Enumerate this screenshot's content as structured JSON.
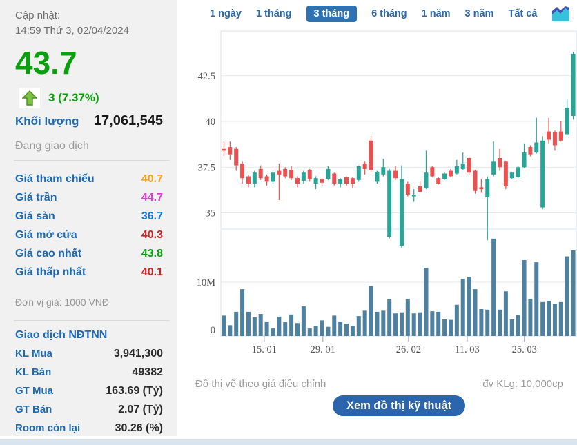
{
  "update": {
    "label": "Cập nhật:",
    "datetime": "14:59 Thứ 3, 02/04/2024"
  },
  "ticker": {
    "last_price": "43.7",
    "change_text": "3 (7.37%)",
    "volume_label": "Khối lượng",
    "volume_value": "17,061,545",
    "status": "Đang giao dịch"
  },
  "price_table": {
    "rows": [
      {
        "label": "Giá tham chiếu",
        "value": "40.7",
        "color": "#f7a21b"
      },
      {
        "label": "Giá trần",
        "value": "44.7",
        "color": "#dd3bd4"
      },
      {
        "label": "Giá sàn",
        "value": "36.7",
        "color": "#1577d4"
      },
      {
        "label": "Giá mở cửa",
        "value": "40.3",
        "color": "#d0211f"
      },
      {
        "label": "Giá cao nhất",
        "value": "43.8",
        "color": "#0aa00d"
      },
      {
        "label": "Giá thấp nhất",
        "value": "40.1",
        "color": "#d0211f"
      }
    ],
    "unit_note": "Đơn vị giá: 1000 VNĐ"
  },
  "foreign_block": {
    "title": "Giao dịch NĐTNN",
    "rows": [
      {
        "label": "KL Mua",
        "value": "3,941,300"
      },
      {
        "label": "KL Bán",
        "value": "49382"
      },
      {
        "label": "GT Mua",
        "value": "163.69 (Tỷ)"
      },
      {
        "label": "GT Bán",
        "value": "2.07 (Tỷ)"
      },
      {
        "label": "Room còn lại",
        "value": "30.26 (%)"
      }
    ]
  },
  "tabs": {
    "items": [
      {
        "label": "1 ngày",
        "active": false
      },
      {
        "label": "1 tháng",
        "active": false
      },
      {
        "label": "3 tháng",
        "active": true
      },
      {
        "label": "6 tháng",
        "active": false
      },
      {
        "label": "1 năm",
        "active": false
      },
      {
        "label": "3 năm",
        "active": false
      },
      {
        "label": "Tất cả",
        "active": false
      }
    ],
    "chart_icon": "area-chart-icon"
  },
  "footer": {
    "note_left": "Đồ thị vẽ theo giá điều chỉnh",
    "note_right": "đv KLg: 10,000cp",
    "button_label": "Xem đồ thị kỹ thuật"
  },
  "colors": {
    "up_candle": "#27a598",
    "down_candle": "#ea5252",
    "volume_bar": "#4e80a0",
    "grid_line": "#e8e8e8",
    "panel_border": "#d9e3ef",
    "axis_text": "#555555",
    "accent_blue": "#2a65ad",
    "label_blue": "#1d6ab3",
    "price_green": "#0aa00d"
  },
  "chart_data": {
    "type": "candlestick+volume",
    "title": "",
    "price_axis": {
      "tick_values": [
        35,
        37.5,
        40,
        42.5
      ],
      "tick_labels": [
        "35",
        "37.5",
        "40",
        "42.5"
      ],
      "range_note": "approx 34.2 - 44.9"
    },
    "volume_axis": {
      "tick_labels": [
        "0",
        "10M"
      ],
      "unit": "10,000cp shown as M shares"
    },
    "x_ticks": [
      {
        "label": "15. 01",
        "index": 7,
        "pos": 0.122
      },
      {
        "label": "29. 01",
        "index": 17,
        "pos": 0.287
      },
      {
        "label": "26. 02",
        "index": 31,
        "pos": 0.528
      },
      {
        "label": "11. 03",
        "index": 41,
        "pos": 0.693
      },
      {
        "label": "25. 03",
        "index": 51,
        "pos": 0.854
      }
    ],
    "candles_ohlc": [
      [
        38.5,
        38.9,
        38.1,
        38.4
      ],
      [
        38.6,
        38.9,
        37.9,
        38.2
      ],
      [
        38.5,
        38.6,
        37.3,
        37.6
      ],
      [
        37.7,
        37.8,
        36.6,
        36.9
      ],
      [
        37.0,
        37.1,
        36.4,
        36.6
      ],
      [
        36.6,
        37.3,
        36.4,
        37.2
      ],
      [
        37.4,
        37.6,
        36.8,
        36.9
      ],
      [
        37.0,
        37.1,
        36.5,
        36.7
      ],
      [
        36.7,
        37.3,
        36.6,
        37.2
      ],
      [
        37.3,
        37.7,
        35.7,
        37.1
      ],
      [
        37.4,
        37.5,
        36.9,
        37.0
      ],
      [
        37.35,
        37.55,
        36.8,
        36.9
      ],
      [
        36.9,
        37.0,
        36.4,
        36.6
      ],
      [
        36.75,
        37.3,
        36.6,
        37.2
      ],
      [
        37.35,
        37.4,
        36.7,
        36.85
      ],
      [
        36.6,
        37.0,
        36.3,
        36.9
      ],
      [
        36.85,
        36.9,
        36.5,
        36.65
      ],
      [
        36.85,
        37.55,
        36.8,
        37.4
      ],
      [
        37.15,
        37.2,
        36.5,
        36.6
      ],
      [
        36.6,
        36.9,
        36.4,
        36.85
      ],
      [
        36.95,
        37.0,
        36.5,
        36.6
      ],
      [
        36.9,
        36.95,
        36.35,
        36.6
      ],
      [
        36.8,
        37.6,
        36.7,
        37.55
      ],
      [
        37.7,
        37.8,
        37.1,
        37.4
      ],
      [
        38.95,
        39.2,
        37.2,
        37.35
      ],
      [
        36.7,
        37.3,
        36.6,
        37.25
      ],
      [
        37.1,
        37.95,
        37.0,
        37.5
      ],
      [
        33.7,
        37.4,
        33.6,
        37.3
      ],
      [
        37.3,
        37.55,
        36.8,
        36.9
      ],
      [
        33.2,
        37.6,
        33.1,
        36.85
      ],
      [
        36.6,
        36.7,
        35.9,
        36.0
      ],
      [
        35.9,
        36.3,
        35.6,
        36.0
      ],
      [
        36.45,
        36.7,
        36.1,
        36.15
      ],
      [
        36.35,
        38.4,
        36.3,
        37.2
      ],
      [
        37.5,
        37.55,
        36.95,
        37.0
      ],
      [
        36.9,
        36.95,
        36.55,
        36.6
      ],
      [
        36.85,
        37.2,
        36.8,
        37.15
      ],
      [
        37.3,
        37.4,
        36.95,
        37.0
      ],
      [
        37.15,
        37.9,
        37.1,
        37.55
      ],
      [
        37.4,
        38.3,
        37.35,
        37.7
      ],
      [
        38.0,
        38.1,
        37.1,
        37.2
      ],
      [
        37.3,
        37.35,
        36.05,
        36.2
      ],
      [
        36.4,
        36.85,
        36.1,
        36.3
      ],
      [
        35.85,
        37.0,
        33.5,
        36.85
      ],
      [
        37.1,
        38.9,
        37.0,
        37.8
      ],
      [
        38.0,
        38.5,
        37.3,
        37.5
      ],
      [
        37.8,
        37.85,
        36.3,
        36.45
      ],
      [
        36.9,
        37.25,
        36.85,
        37.2
      ],
      [
        36.95,
        37.55,
        36.9,
        37.5
      ],
      [
        37.5,
        38.8,
        37.45,
        38.3
      ],
      [
        38.6,
        38.7,
        38.1,
        38.2
      ],
      [
        38.3,
        40.2,
        38.25,
        38.85
      ],
      [
        35.3,
        39.2,
        35.2,
        38.95
      ],
      [
        39.45,
        40.2,
        38.8,
        39.0
      ],
      [
        39.4,
        39.5,
        38.4,
        38.7
      ],
      [
        39.45,
        40.0,
        38.9,
        38.95
      ],
      [
        39.3,
        41.2,
        39.25,
        40.75
      ],
      [
        40.3,
        43.8,
        40.1,
        43.7
      ]
    ],
    "volumes_millions": [
      3.8,
      2.0,
      4.5,
      8.7,
      4.5,
      3.5,
      4.1,
      2.7,
      1.4,
      3.6,
      2.6,
      4.0,
      2.4,
      5.5,
      1.4,
      1.9,
      2.9,
      1.7,
      3.8,
      2.7,
      2.3,
      1.9,
      3.7,
      4.7,
      9.3,
      4.5,
      4.7,
      6.9,
      4.2,
      4.4,
      6.9,
      4.2,
      4.4,
      12.7,
      4.6,
      4.5,
      3.1,
      3.0,
      5.8,
      10.6,
      11.0,
      8.7,
      5.0,
      4.9,
      18.1,
      4.9,
      8.3,
      3.1,
      3.9,
      14.1,
      6.9,
      13.7,
      6.3,
      6.5,
      6.0,
      6.3,
      14.8,
      15.9
    ]
  }
}
